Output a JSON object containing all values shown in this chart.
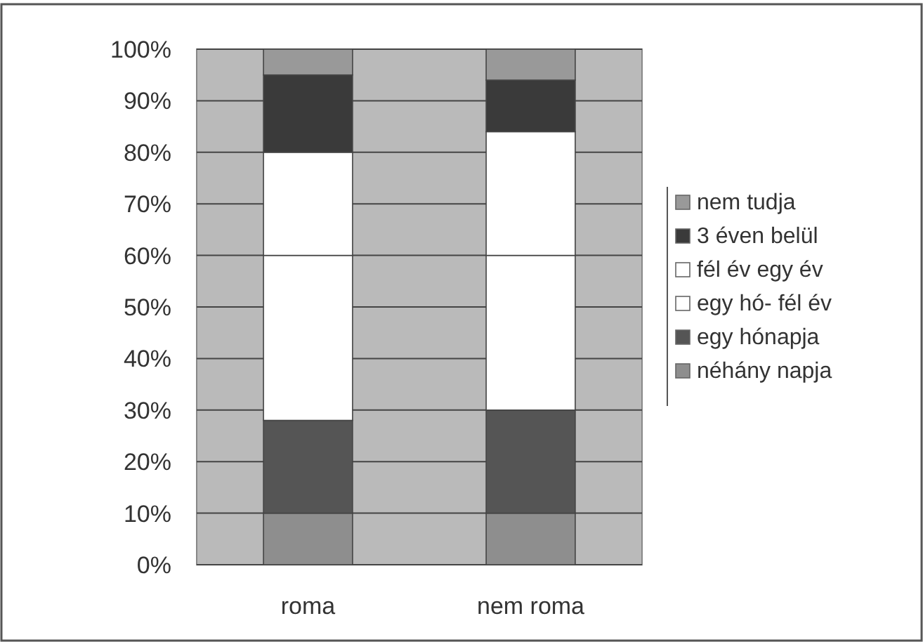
{
  "chart_data": {
    "type": "bar",
    "stacked": true,
    "categories": [
      "roma",
      "nem roma"
    ],
    "series": [
      {
        "name": "néhány napja",
        "color": "#8e8e8e",
        "values": [
          10,
          10
        ]
      },
      {
        "name": "egy hónapja",
        "color": "#555555",
        "values": [
          18,
          20
        ]
      },
      {
        "name": "egy hó- fél év",
        "color": "#ffffff",
        "values": [
          32,
          30
        ]
      },
      {
        "name": "fél év egy év",
        "color": "#ffffff",
        "values": [
          20,
          24
        ]
      },
      {
        "name": "3 éven belül",
        "color": "#3a3a3a",
        "values": [
          15,
          10
        ]
      },
      {
        "name": "nem tudja",
        "color": "#999999",
        "values": [
          5,
          6
        ]
      }
    ],
    "ylim": [
      0,
      100
    ],
    "yticks": [
      {
        "value": 0,
        "label": "0%"
      },
      {
        "value": 10,
        "label": "10%"
      },
      {
        "value": 20,
        "label": "20%"
      },
      {
        "value": 30,
        "label": "30%"
      },
      {
        "value": 40,
        "label": "40%"
      },
      {
        "value": 50,
        "label": "50%"
      },
      {
        "value": 60,
        "label": "60%"
      },
      {
        "value": 70,
        "label": "70%"
      },
      {
        "value": 80,
        "label": "80%"
      },
      {
        "value": 90,
        "label": "90%"
      },
      {
        "value": 100,
        "label": "100%"
      }
    ],
    "grid": "y",
    "legend": "right"
  }
}
